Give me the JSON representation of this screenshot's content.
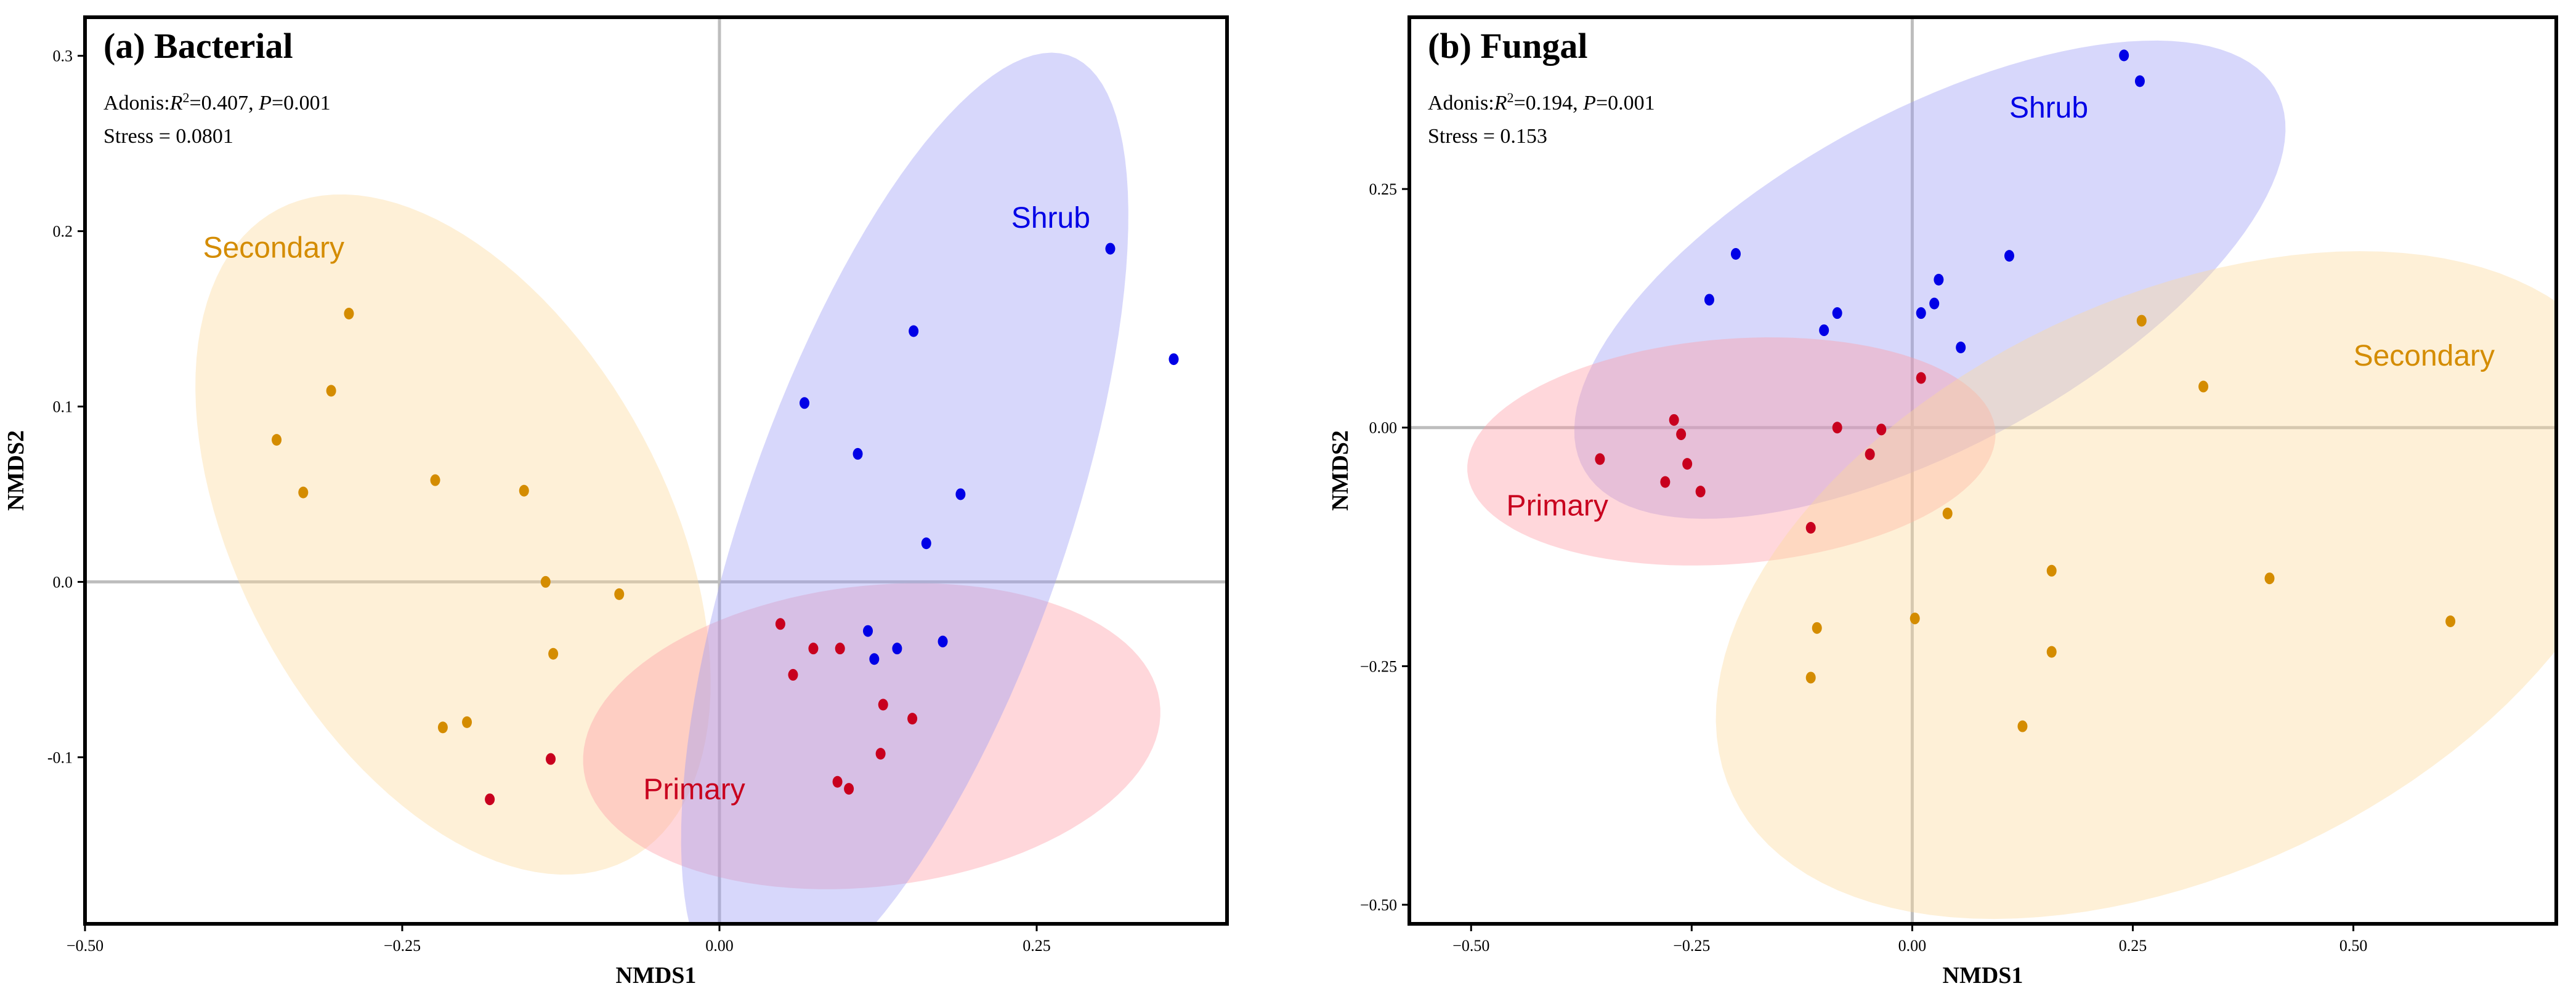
{
  "colors": {
    "Primary": "#c8001e",
    "Secondary": "#d48c00",
    "Shrub": "#0000e6",
    "Primary_fill": "#ff9aa6",
    "Secondary_fill": "#fcd99a",
    "Shrub_fill": "#9c9cf5"
  },
  "chart_data": [
    {
      "type": "scatter",
      "title": "(a) Bacterial",
      "stats": {
        "adonis_prefix": "Adonis:",
        "r2_symbol": "R",
        "r2_sup": "2",
        "r2_value": "=0.407, ",
        "p_symbol": "P",
        "p_value": "=0.001",
        "stress": "Stress = 0.0801"
      },
      "xlabel": "NMDS1",
      "ylabel": "NMDS2",
      "xlim": [
        -0.5,
        0.4
      ],
      "ylim": [
        -0.195,
        0.322
      ],
      "xticks": [
        -0.5,
        -0.25,
        0.0,
        0.25
      ],
      "xtick_labels": [
        "−0.50",
        "−0.25",
        "0.00",
        "0.25"
      ],
      "yticks": [
        -0.1,
        0.0,
        0.1,
        0.2,
        0.3
      ],
      "ytick_labels": [
        "-0.1",
        "0.0",
        "0.1",
        "0.2",
        "0.3"
      ],
      "series": [
        {
          "name": "Secondary",
          "points": [
            [
              -0.292,
              0.153
            ],
            [
              -0.306,
              0.109
            ],
            [
              -0.349,
              0.081
            ],
            [
              -0.328,
              0.051
            ],
            [
              -0.224,
              0.058
            ],
            [
              -0.154,
              0.052
            ],
            [
              -0.137,
              0.0
            ],
            [
              -0.079,
              -0.007
            ],
            [
              -0.131,
              -0.041
            ],
            [
              -0.218,
              -0.083
            ],
            [
              -0.199,
              -0.08
            ]
          ]
        },
        {
          "name": "Primary",
          "points": [
            [
              0.048,
              -0.024
            ],
            [
              0.074,
              -0.038
            ],
            [
              0.095,
              -0.038
            ],
            [
              0.058,
              -0.053
            ],
            [
              0.129,
              -0.07
            ],
            [
              0.152,
              -0.078
            ],
            [
              0.127,
              -0.098
            ],
            [
              0.093,
              -0.114
            ],
            [
              0.102,
              -0.118
            ],
            [
              -0.133,
              -0.101
            ],
            [
              -0.181,
              -0.124
            ]
          ]
        },
        {
          "name": "Shrub",
          "points": [
            [
              0.308,
              0.19
            ],
            [
              0.358,
              0.127
            ],
            [
              0.153,
              0.143
            ],
            [
              0.067,
              0.102
            ],
            [
              0.109,
              0.073
            ],
            [
              0.19,
              0.05
            ],
            [
              0.163,
              0.022
            ],
            [
              0.117,
              -0.028
            ],
            [
              0.176,
              -0.034
            ],
            [
              0.14,
              -0.038
            ],
            [
              0.122,
              -0.044
            ]
          ]
        }
      ],
      "ellipses": [
        {
          "group": "Secondary",
          "center": [
            -0.21,
            0.027
          ],
          "rx_deg": 0.238,
          "ry_deg": 0.149,
          "angle_data": -42
        },
        {
          "group": "Primary",
          "center": [
            0.12,
            -0.088
          ],
          "rx_deg": 0.228,
          "ry_deg": 0.086,
          "angle_data": 4
        },
        {
          "group": "Shrub",
          "center": [
            0.146,
            0.031
          ],
          "rx_deg": 0.3,
          "ry_deg": 0.12,
          "angle_data": 62
        }
      ],
      "group_labels": [
        {
          "group": "Secondary",
          "text": "Secondary",
          "pos": [
            -0.407,
            0.185
          ]
        },
        {
          "group": "Shrub",
          "text": "Shrub",
          "pos": [
            0.23,
            0.202
          ]
        },
        {
          "group": "Primary",
          "text": "Primary",
          "pos": [
            -0.06,
            -0.124
          ]
        }
      ]
    },
    {
      "type": "scatter",
      "title": "(b) Fungal",
      "stats": {
        "adonis_prefix": "Adonis:",
        "r2_symbol": "R",
        "r2_sup": "2",
        "r2_value": "=0.194, ",
        "p_symbol": "P",
        "p_value": "=0.001",
        "stress": "Stress = 0.153"
      },
      "xlabel": "NMDS1",
      "ylabel": "NMDS2",
      "xlim": [
        -0.57,
        0.73
      ],
      "ylim": [
        -0.52,
        0.43
      ],
      "xticks": [
        -0.5,
        -0.25,
        0.0,
        0.25,
        0.5
      ],
      "xtick_labels": [
        "−0.50",
        "−0.25",
        "0.00",
        "0.25",
        "0.50"
      ],
      "yticks": [
        -0.5,
        -0.25,
        0.0,
        0.25
      ],
      "ytick_labels": [
        "−0.50",
        "−0.25",
        "0.00",
        "0.25"
      ],
      "series": [
        {
          "name": "Shrub",
          "points": [
            [
              0.24,
              0.39
            ],
            [
              0.258,
              0.363
            ],
            [
              -0.2,
              0.182
            ],
            [
              -0.23,
              0.134
            ],
            [
              0.11,
              0.18
            ],
            [
              0.03,
              0.155
            ],
            [
              0.025,
              0.13
            ],
            [
              -0.085,
              0.12
            ],
            [
              -0.1,
              0.102
            ],
            [
              0.01,
              0.12
            ],
            [
              0.055,
              0.084
            ]
          ]
        },
        {
          "name": "Primary",
          "points": [
            [
              0.01,
              0.052
            ],
            [
              -0.27,
              0.008
            ],
            [
              -0.262,
              -0.007
            ],
            [
              -0.354,
              -0.033
            ],
            [
              -0.255,
              -0.038
            ],
            [
              -0.28,
              -0.057
            ],
            [
              -0.24,
              -0.067
            ],
            [
              -0.085,
              0.0
            ],
            [
              -0.035,
              -0.002
            ],
            [
              -0.048,
              -0.028
            ],
            [
              -0.115,
              -0.105
            ]
          ]
        },
        {
          "name": "Secondary",
          "points": [
            [
              0.26,
              0.112
            ],
            [
              0.33,
              0.043
            ],
            [
              0.04,
              -0.09
            ],
            [
              0.158,
              -0.15
            ],
            [
              0.405,
              -0.158
            ],
            [
              0.003,
              -0.2
            ],
            [
              -0.108,
              -0.21
            ],
            [
              0.158,
              -0.235
            ],
            [
              -0.115,
              -0.262
            ],
            [
              0.61,
              -0.203
            ],
            [
              0.125,
              -0.313
            ]
          ]
        }
      ],
      "ellipses": [
        {
          "group": "Shrub",
          "center": [
            0.02,
            0.155
          ],
          "rx_deg": 0.44,
          "ry_deg": 0.178,
          "angle_data": 26
        },
        {
          "group": "Primary",
          "center": [
            -0.205,
            -0.025
          ],
          "rx_deg": 0.3,
          "ry_deg": 0.118,
          "angle_data": 4
        },
        {
          "group": "Secondary",
          "center": [
            0.3,
            -0.165
          ],
          "rx_deg": 0.55,
          "ry_deg": 0.305,
          "angle_data": 22
        }
      ],
      "group_labels": [
        {
          "group": "Shrub",
          "text": "Shrub",
          "pos": [
            0.11,
            0.325
          ]
        },
        {
          "group": "Secondary",
          "text": "Secondary",
          "pos": [
            0.5,
            0.065
          ]
        },
        {
          "group": "Primary",
          "text": "Primary",
          "pos": [
            -0.46,
            -0.092
          ]
        }
      ]
    }
  ]
}
